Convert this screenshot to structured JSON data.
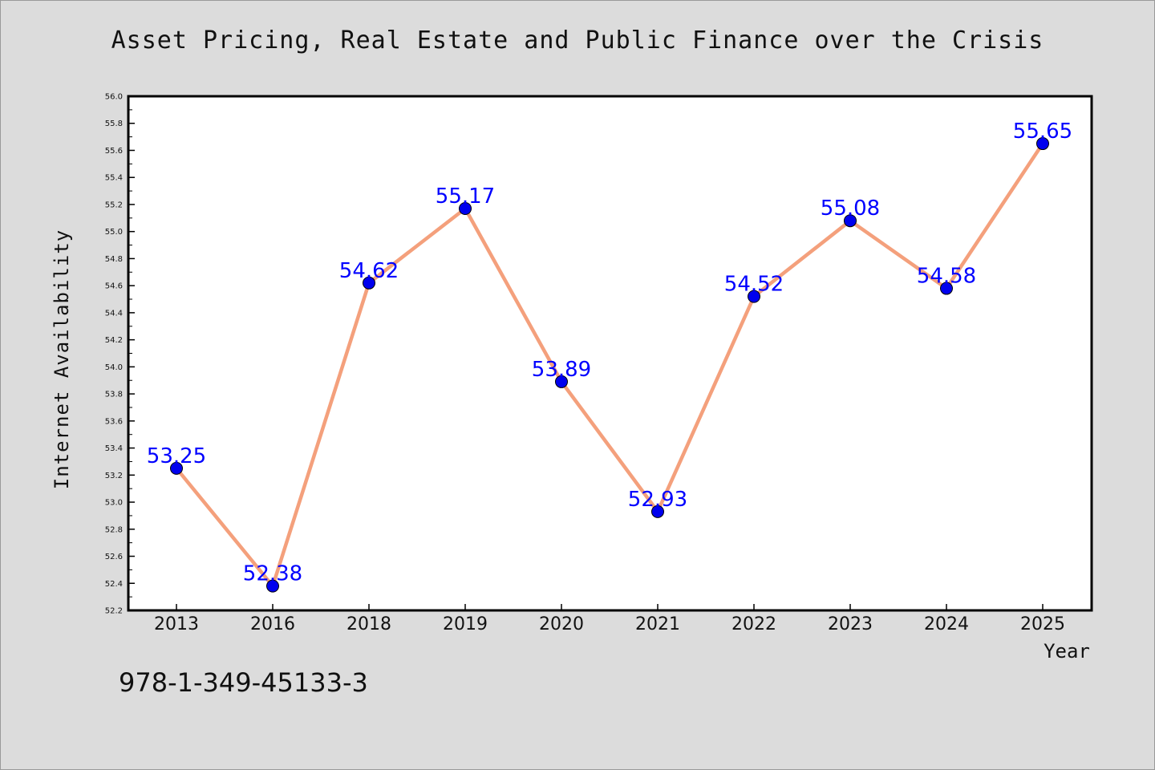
{
  "chart_data": {
    "type": "line",
    "title": "Asset Pricing, Real Estate and Public Finance over the Crisis",
    "xlabel": "Year",
    "ylabel": "Internet Availability",
    "categories": [
      "2013",
      "2016",
      "2018",
      "2019",
      "2020",
      "2021",
      "2022",
      "2023",
      "2024",
      "2025"
    ],
    "series": [
      {
        "values": [
          53.25,
          52.38,
          54.62,
          55.17,
          53.89,
          52.93,
          54.52,
          55.08,
          54.58,
          55.65
        ],
        "labels": [
          "53.25",
          "52.38",
          "54.62",
          "55.17",
          "53.89",
          "52.93",
          "54.52",
          "55.08",
          "54.58",
          "55.65"
        ],
        "line_color": "#f4a07c",
        "marker_color": "#0000ee",
        "label_color": "#0000ff"
      }
    ],
    "ylim": [
      52.2,
      56.0
    ],
    "y_ticks": [
      "52.2",
      "52.4",
      "52.6",
      "52.8",
      "53.0",
      "53.2",
      "53.4",
      "53.6",
      "53.8",
      "54.0",
      "54.2",
      "54.4",
      "54.6",
      "54.8",
      "55.0",
      "55.2",
      "55.4",
      "55.6",
      "55.8",
      "56.0"
    ],
    "grid": false,
    "legend": "none"
  },
  "footer": {
    "isbn": "978-1-349-45133-3"
  }
}
